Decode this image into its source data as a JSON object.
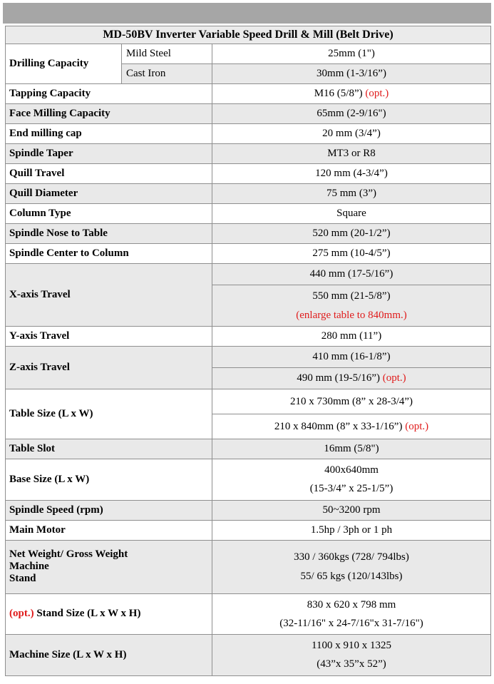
{
  "colors": {
    "top_band": "#a6a6a6",
    "row_alt": "#e9e9e9",
    "title_bg": "#ebebeb",
    "border": "#8f8f8f",
    "red_text": "#e01b1b"
  },
  "table": {
    "title": "MD-50BV Inverter Variable Speed Drill & Mill (Belt Drive)",
    "rows": {
      "drilling": {
        "label": "Drilling Capacity",
        "sub1": "Mild Steel",
        "val1": "25mm (1\")",
        "sub2": "Cast Iron",
        "val2": "30mm (1-3/16”)"
      },
      "tapping": {
        "label": "Tapping Capacity",
        "value": "M16 (5/8”)",
        "opt": "(opt.)"
      },
      "face_milling": {
        "label": "Face Milling Capacity",
        "value": "65mm (2-9/16\")"
      },
      "end_milling": {
        "label": "End milling cap",
        "value": "20 mm (3/4”)"
      },
      "spindle_taper": {
        "label": "Spindle Taper",
        "value": "MT3 or R8"
      },
      "quill_travel": {
        "label": "Quill Travel",
        "value": "120 mm (4-3/4”)"
      },
      "quill_diameter": {
        "label": "Quill Diameter",
        "value": "75 mm (3”)"
      },
      "column_type": {
        "label": "Column Type",
        "value": "Square"
      },
      "spindle_nose": {
        "label": "Spindle Nose to Table",
        "value": "520 mm (20-1/2”)"
      },
      "spindle_center": {
        "label": "Spindle Center to Column",
        "value": "275 mm (10-4/5”)"
      },
      "x_axis": {
        "label": "X-axis Travel",
        "val1": "440 mm (17-5/16”)",
        "val2": "550 mm (21-5/8”)",
        "note": "(enlarge table to 840mm.)"
      },
      "y_axis": {
        "label": "Y-axis Travel",
        "value": "280 mm (11”)"
      },
      "z_axis": {
        "label": "Z-axis Travel",
        "val1": "410 mm (16-1/8”)",
        "val2": "490 mm (19-5/16”)",
        "opt": "(opt.)"
      },
      "table_size": {
        "label": "Table Size (L x W)",
        "val1": "210 x 730mm (8” x 28-3/4”)",
        "val2": "210 x 840mm (8” x 33-1/16”)",
        "opt": "(opt.)"
      },
      "table_slot": {
        "label": "Table Slot",
        "value": "16mm (5/8\")"
      },
      "base_size": {
        "label": "Base Size (L x W)",
        "line1": "400x640mm",
        "line2": "(15-3/4” x 25-1/5”)"
      },
      "spindle_speed": {
        "label": "Spindle Speed (rpm)",
        "value": "50~3200 rpm"
      },
      "main_motor": {
        "label": "Main Motor",
        "value": "1.5hp / 3ph or 1 ph"
      },
      "weight": {
        "label_line1": "Net Weight/ Gross Weight",
        "label_line2": "Machine",
        "label_line3": "Stand",
        "value_line1": "330 / 360kgs (728/ 794lbs)",
        "value_line2": "55/ 65 kgs (120/143lbs)"
      },
      "stand_size": {
        "opt": "(opt.)",
        "label": "Stand Size (L x W x H)",
        "line1": "830 x 620 x 798 mm",
        "line2": "(32-11/16\" x 24-7/16\"x 31-7/16\")"
      },
      "machine_size": {
        "label": "Machine Size (L x W x H)",
        "line1": "1100 x 910 x 1325",
        "line2": "(43”x 35”x 52”)"
      }
    }
  }
}
